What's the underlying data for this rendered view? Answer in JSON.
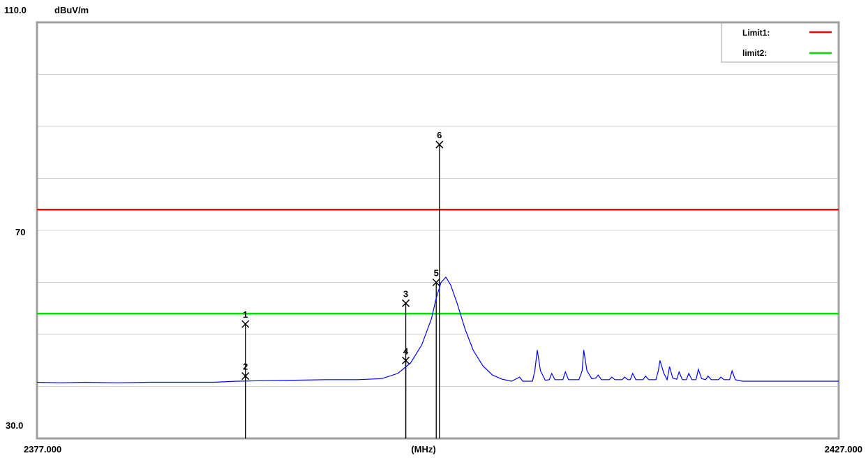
{
  "chart_data": {
    "type": "line",
    "ylabel": "dBuV/m",
    "xlabel": "(MHz)",
    "xlim": [
      2377.0,
      2427.0
    ],
    "ylim": [
      30.0,
      110.0
    ],
    "x_tick_labels": [
      "2377.000",
      "(MHz)",
      "2427.000"
    ],
    "y_tick_labels": [
      "110.0",
      "70",
      "30.0"
    ],
    "grid": true,
    "legend_position": "top-right",
    "limits": [
      {
        "name": "Limit1:",
        "value": 74,
        "color": "#ff0000"
      },
      {
        "name": "limit2:",
        "value": 54,
        "color": "#00dd00"
      }
    ],
    "series": [
      {
        "color": "#0000ff",
        "points": [
          [
            2377.0,
            40.8
          ],
          [
            2378.5,
            40.7
          ],
          [
            2380.0,
            40.8
          ],
          [
            2382.0,
            40.7
          ],
          [
            2384.0,
            40.8
          ],
          [
            2386.0,
            40.8
          ],
          [
            2388.0,
            40.8
          ],
          [
            2389.5,
            41.0
          ],
          [
            2391.0,
            41.1
          ],
          [
            2393.0,
            41.2
          ],
          [
            2395.0,
            41.3
          ],
          [
            2397.0,
            41.3
          ],
          [
            2398.5,
            41.5
          ],
          [
            2399.5,
            42.5
          ],
          [
            2400.3,
            44.5
          ],
          [
            2401.0,
            48.0
          ],
          [
            2401.6,
            53.0
          ],
          [
            2401.9,
            57.0
          ],
          [
            2402.2,
            60.0
          ],
          [
            2402.5,
            61.0
          ],
          [
            2402.8,
            59.5
          ],
          [
            2403.2,
            56.0
          ],
          [
            2403.7,
            51.0
          ],
          [
            2404.2,
            47.0
          ],
          [
            2404.8,
            44.0
          ],
          [
            2405.4,
            42.2
          ],
          [
            2406.0,
            41.4
          ],
          [
            2406.6,
            41.0
          ],
          [
            2407.1,
            41.8
          ],
          [
            2407.3,
            41.0
          ],
          [
            2407.9,
            41.0
          ],
          [
            2408.05,
            43.0
          ],
          [
            2408.2,
            47.0
          ],
          [
            2408.4,
            43.0
          ],
          [
            2408.7,
            41.2
          ],
          [
            2408.95,
            41.3
          ],
          [
            2409.1,
            42.5
          ],
          [
            2409.3,
            41.3
          ],
          [
            2409.8,
            41.3
          ],
          [
            2409.95,
            42.8
          ],
          [
            2410.15,
            41.3
          ],
          [
            2410.8,
            41.3
          ],
          [
            2411.0,
            43.0
          ],
          [
            2411.1,
            47.0
          ],
          [
            2411.3,
            43.0
          ],
          [
            2411.6,
            41.5
          ],
          [
            2411.85,
            41.6
          ],
          [
            2412.0,
            42.2
          ],
          [
            2412.2,
            41.3
          ],
          [
            2412.7,
            41.3
          ],
          [
            2412.85,
            41.8
          ],
          [
            2413.05,
            41.3
          ],
          [
            2413.5,
            41.3
          ],
          [
            2413.65,
            41.8
          ],
          [
            2413.85,
            41.3
          ],
          [
            2414.0,
            41.3
          ],
          [
            2414.15,
            42.5
          ],
          [
            2414.35,
            41.3
          ],
          [
            2414.8,
            41.3
          ],
          [
            2414.95,
            42.0
          ],
          [
            2415.15,
            41.3
          ],
          [
            2415.6,
            41.3
          ],
          [
            2415.75,
            43.0
          ],
          [
            2415.85,
            45.0
          ],
          [
            2416.1,
            42.5
          ],
          [
            2416.3,
            41.3
          ],
          [
            2416.45,
            43.8
          ],
          [
            2416.65,
            41.6
          ],
          [
            2416.9,
            41.4
          ],
          [
            2417.05,
            42.8
          ],
          [
            2417.25,
            41.3
          ],
          [
            2417.5,
            41.3
          ],
          [
            2417.65,
            42.5
          ],
          [
            2417.85,
            41.3
          ],
          [
            2418.1,
            41.3
          ],
          [
            2418.25,
            43.3
          ],
          [
            2418.45,
            41.5
          ],
          [
            2418.7,
            41.3
          ],
          [
            2418.85,
            42.0
          ],
          [
            2419.05,
            41.3
          ],
          [
            2419.5,
            41.3
          ],
          [
            2419.65,
            41.8
          ],
          [
            2419.85,
            41.3
          ],
          [
            2420.2,
            41.3
          ],
          [
            2420.35,
            43.0
          ],
          [
            2420.55,
            41.3
          ],
          [
            2421.0,
            41.0
          ],
          [
            2423.0,
            41.0
          ],
          [
            2425.0,
            41.0
          ],
          [
            2427.0,
            41.0
          ]
        ]
      }
    ],
    "markers": [
      {
        "label": "1",
        "x": 2390.0,
        "y": 52.0
      },
      {
        "label": "2",
        "x": 2390.0,
        "y": 42.0
      },
      {
        "label": "3",
        "x": 2400.0,
        "y": 56.0
      },
      {
        "label": "4",
        "x": 2400.0,
        "y": 45.0
      },
      {
        "label": "5",
        "x": 2401.9,
        "y": 60.0
      },
      {
        "label": "6",
        "x": 2402.1,
        "y": 86.5
      }
    ]
  }
}
